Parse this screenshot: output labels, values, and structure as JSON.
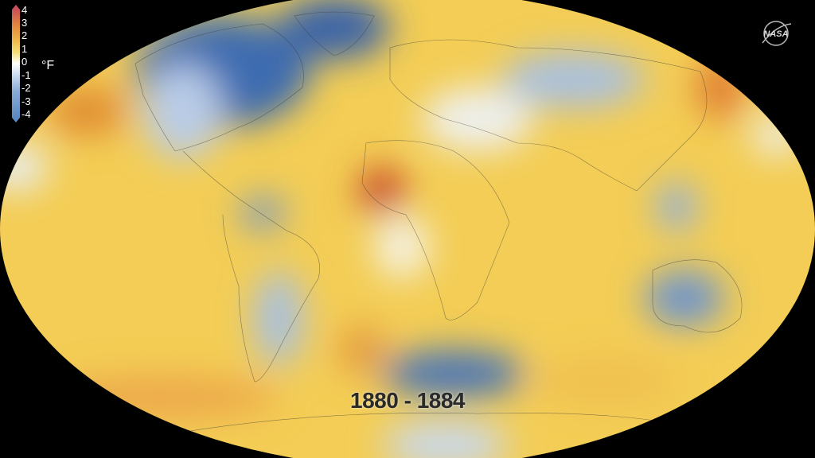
{
  "legend": {
    "ticks": [
      "4",
      "3",
      "2",
      "1",
      "0",
      "-1",
      "-2",
      "-3",
      "-4"
    ],
    "unit": "°F",
    "colors": {
      "hot": "#c9505a",
      "warm": "#e0853f",
      "mild": "#f4e07a",
      "neutral": "#ffffff",
      "cool": "#88aad6",
      "cold": "#3d6cb0"
    }
  },
  "logo": {
    "text": "NASA"
  },
  "period_label": "1880 - 1884"
}
